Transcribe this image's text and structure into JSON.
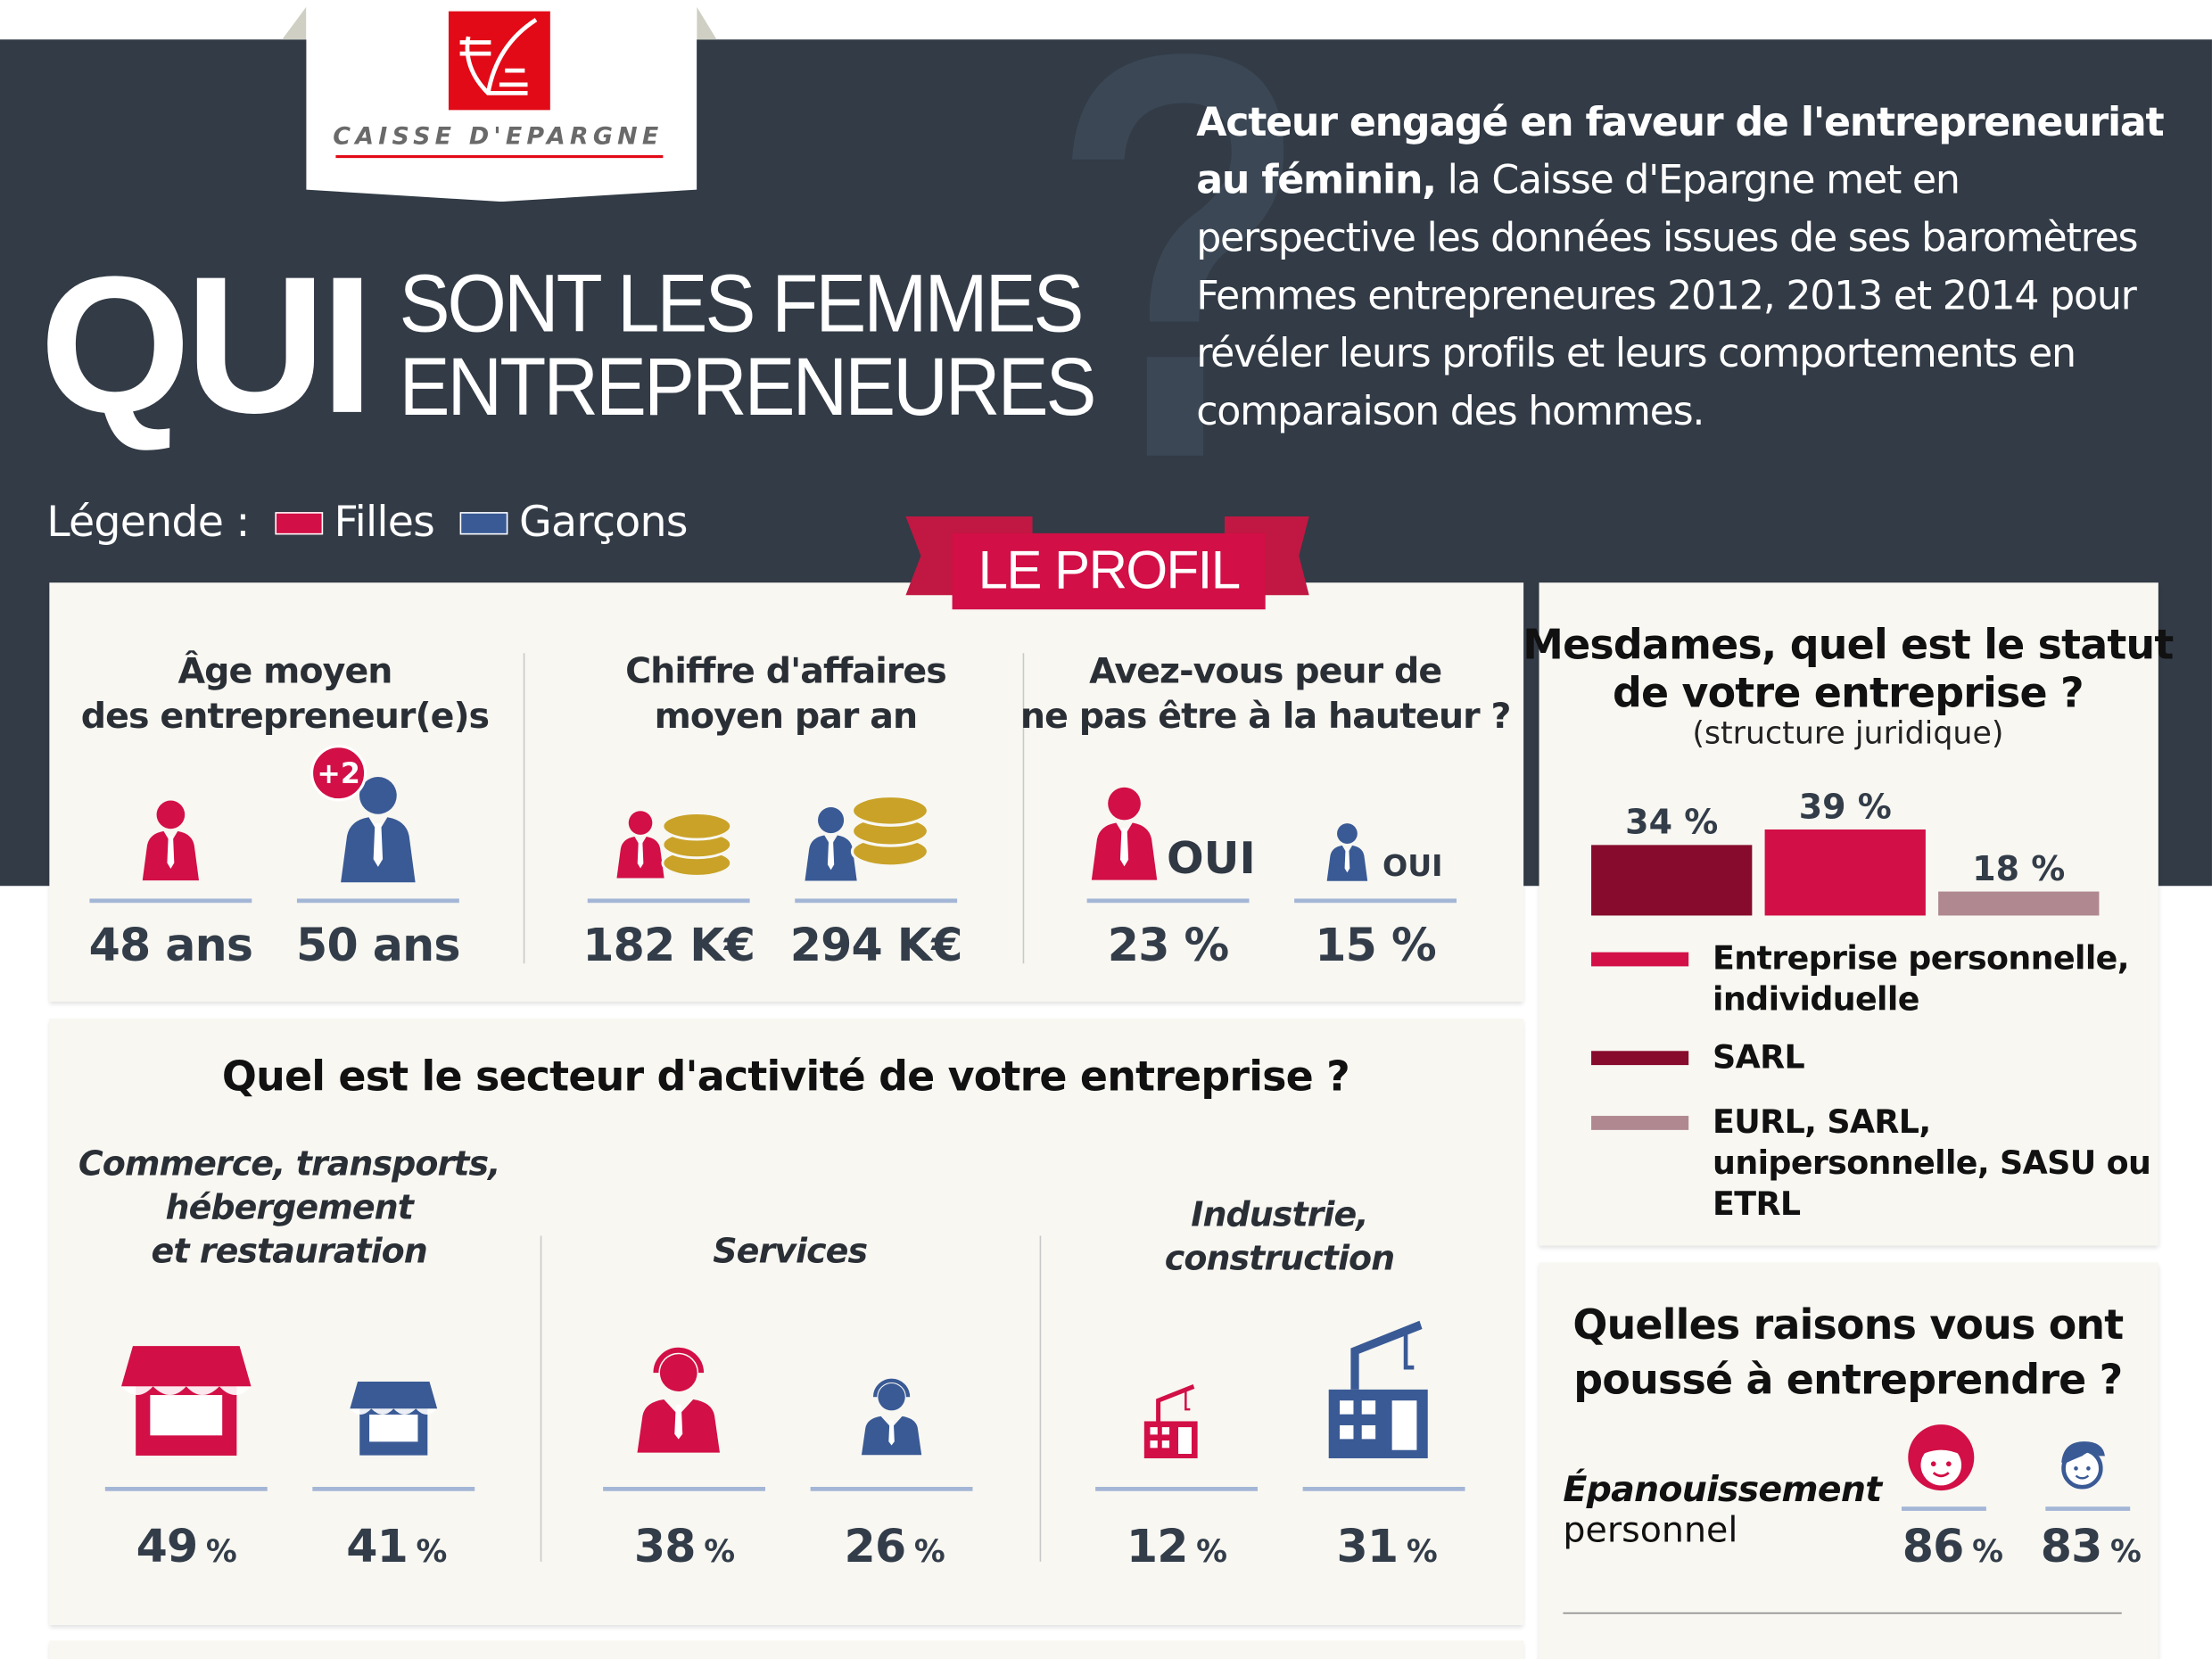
{
  "header": {
    "logo_text": "CAISSE D'EPARGNE",
    "title_big": "QUI",
    "title_line1": "SONT LES FEMMES",
    "title_line2": "ENTREPRENEURES",
    "intro_bold": "Acteur engagé en faveur de l'entrepreneuriat au féminin,",
    "intro_rest": " la Caisse d'Epargne met en perspective les données issues de ses baromètres Femmes entrepreneures 2012, 2013 et 2014 pour révéler leurs profils et leurs comportements en comparaison des hommes."
  },
  "legend": {
    "label": "Légende :",
    "girls": "Filles",
    "boys": "Garçons"
  },
  "colors": {
    "girls": "#d20f46",
    "boys": "#3a5a95",
    "dark_bg": "#323b46",
    "panel": "#f8f7f2",
    "sarl": "#860b2c",
    "eurl": "#b08890"
  },
  "ribbon": "LE PROFIL",
  "profile": [
    {
      "title1": "Âge moyen",
      "title2": "des entrepreneur(e)s",
      "badge": "+2",
      "female": "48 ans",
      "male": "50 ans",
      "icon": "person-icon"
    },
    {
      "title1": "Chiffre d'affaires",
      "title2": "moyen par an",
      "female": "182 K€",
      "male": "294 K€",
      "icon": "person-coins-icon"
    },
    {
      "title1": "Avez-vous peur de",
      "title2": "ne pas être à la hauteur ?",
      "icon_label": "OUI",
      "female": "23 %",
      "male": "15 %",
      "icon": "person-icon"
    }
  ],
  "sector": {
    "title": "Quel est le secteur d'activité de votre entreprise ?",
    "unit": "%",
    "categories": [
      {
        "lines": [
          "Commerce, transports,",
          "hébergement",
          "et restauration"
        ],
        "female": "49",
        "male": "41",
        "icon": "shop-icon"
      },
      {
        "lines": [
          "Services"
        ],
        "female": "38",
        "male": "26",
        "icon": "headset-person-icon"
      },
      {
        "lines": [
          "Industrie,",
          "construction"
        ],
        "female": "12",
        "male": "31",
        "icon": "crane-building-icon"
      }
    ]
  },
  "statut": {
    "title1": "Mesdames, quel est le statut",
    "title2": "de votre entreprise ?",
    "subtitle": "(structure juridique)",
    "legend": [
      {
        "lines": [
          "Entreprise personnelle,",
          "individuelle"
        ],
        "color": "#d20f46"
      },
      {
        "lines": [
          "SARL"
        ],
        "color": "#860b2c"
      },
      {
        "lines": [
          "EURL, SARL,",
          "unipersonnelle, SASU ou",
          "ETRL"
        ],
        "color": "#b08890"
      }
    ]
  },
  "chart_data": {
    "type": "bar",
    "categories": [
      "SARL",
      "Entreprise personnelle, individuelle",
      "EURL, SARL, unipersonnelle, SASU ou ETRL"
    ],
    "values": [
      34,
      39,
      18
    ],
    "labels": [
      "34 %",
      "39 %",
      "18 %"
    ],
    "colors": [
      "#860b2c",
      "#d20f46",
      "#b08890"
    ],
    "legend": "below"
  },
  "raisons": {
    "title1": "Quelles raisons vous ont",
    "title2": "poussé à entreprendre ?",
    "item_bold": "Épanouissement",
    "item_rest": "personnel",
    "female": "86",
    "male": "83",
    "unit": "%"
  }
}
